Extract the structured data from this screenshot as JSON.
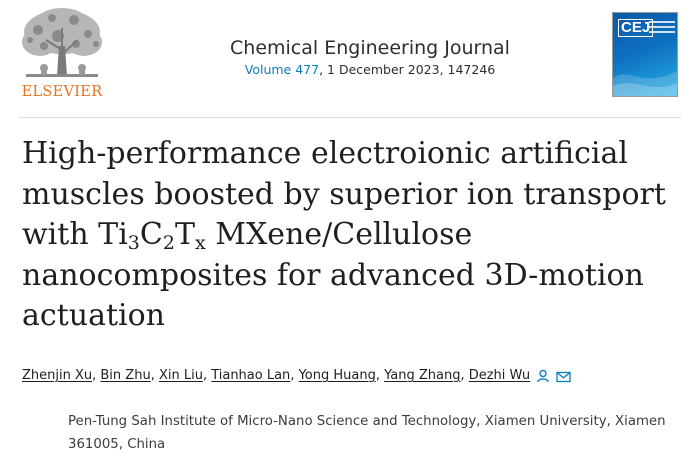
{
  "header": {
    "publisher": "ELSEVIER",
    "journal_title": "Chemical Engineering Journal",
    "volume_link": "Volume 477",
    "issue_rest": ", 1 December 2023, 147246",
    "cover_abbrev": "CEJ",
    "icons": {
      "logo": "elsevier-tree-logo",
      "cover": "journal-cover-thumbnail"
    }
  },
  "article": {
    "title_parts": {
      "p1": "High-performance electroionic artificial muscles boosted by superior ion transport with Ti",
      "s1": "3",
      "p2": "C",
      "s2": "2",
      "p3": "T",
      "s3": "x",
      "p4": " MXene/Cellulose nanocomposites for advanced 3D-motion actuation"
    }
  },
  "authors": [
    "Zhenjin Xu",
    "Bin Zhu",
    "Xin Liu",
    "Tianhao Lan",
    "Yong Huang",
    "Yang Zhang",
    "Dezhi Wu"
  ],
  "author_separator": ", ",
  "author_icons": [
    "person-icon",
    "envelope-icon"
  ],
  "affiliation": "Pen-Tung Sah Institute of Micro-Nano Science and Technology, Xiamen University, Xiamen 361005, China",
  "colors": {
    "accent_blue": "#0c7dbb",
    "elsevier_orange": "#e9711c",
    "text": "#1f1f1f"
  }
}
